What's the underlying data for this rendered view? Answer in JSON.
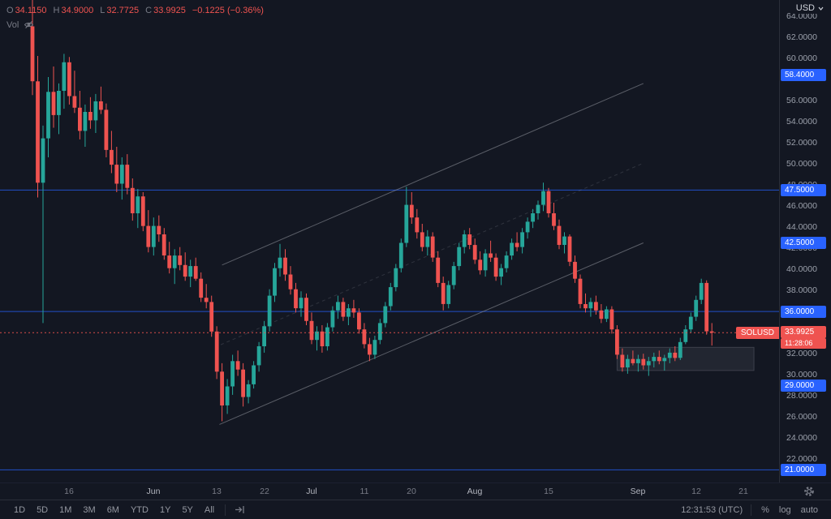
{
  "colors": {
    "bg": "#131722",
    "up": "#26a69a",
    "down": "#ef5350",
    "accent": "#2962ff",
    "trendline": "#9598a1",
    "text_dim": "#787b86",
    "text": "#b2b5be"
  },
  "icons": {
    "volume_visibility": "eye-off-icon",
    "go_to_date": "go-to-date-icon",
    "axis_settings": "gear-icon",
    "currency_dropdown": "chevron-down-icon"
  },
  "legend": {
    "open_label": "O",
    "open": "34.1150",
    "high_label": "H",
    "high": "34.9000",
    "low_label": "L",
    "low": "32.7725",
    "close_label": "C",
    "close": "33.9925",
    "change": "−0.1225 (−0.36%)",
    "volume_label": "Vol"
  },
  "currency_button": {
    "label": "USD"
  },
  "price_axis": {
    "normal_labels": [
      {
        "text": "64.0000",
        "price": 64
      },
      {
        "text": "62.0000",
        "price": 62
      },
      {
        "text": "60.0000",
        "price": 60
      },
      {
        "text": "56.0000",
        "price": 56
      },
      {
        "text": "54.0000",
        "price": 54
      },
      {
        "text": "52.0000",
        "price": 52
      },
      {
        "text": "50.0000",
        "price": 50
      },
      {
        "text": "48.0000",
        "price": 48
      },
      {
        "text": "46.0000",
        "price": 46
      },
      {
        "text": "44.0000",
        "price": 44
      },
      {
        "text": "42.0000",
        "price": 42
      },
      {
        "text": "40.0000",
        "price": 40
      },
      {
        "text": "38.0000",
        "price": 38
      },
      {
        "text": "32.0000",
        "price": 32
      },
      {
        "text": "30.0000",
        "price": 30
      },
      {
        "text": "28.0000",
        "price": 28
      },
      {
        "text": "26.0000",
        "price": 26
      },
      {
        "text": "24.0000",
        "price": 24
      },
      {
        "text": "22.0000",
        "price": 22
      }
    ],
    "level_labels": [
      {
        "text": "58.4000",
        "price": 58.4
      },
      {
        "text": "47.5000",
        "price": 47.5
      },
      {
        "text": "42.5000",
        "price": 42.5
      },
      {
        "text": "36.0000",
        "price": 36.0
      },
      {
        "text": "29.0000",
        "price": 29.0
      },
      {
        "text": "21.0000",
        "price": 21.0
      }
    ],
    "current": {
      "symbol_tag": "SOLUSD",
      "price_text": "33.9925",
      "price": 33.9925,
      "countdown": "11:28:06"
    }
  },
  "time_axis": {
    "ticks": [
      {
        "label": "16",
        "i": 7,
        "major": false
      },
      {
        "label": "Jun",
        "i": 23,
        "major": true
      },
      {
        "label": "13",
        "i": 35,
        "major": false
      },
      {
        "label": "22",
        "i": 44,
        "major": false
      },
      {
        "label": "Jul",
        "i": 53,
        "major": true
      },
      {
        "label": "11",
        "i": 63,
        "major": false
      },
      {
        "label": "20",
        "i": 72,
        "major": false
      },
      {
        "label": "Aug",
        "i": 84,
        "major": true
      },
      {
        "label": "15",
        "i": 98,
        "major": false
      },
      {
        "label": "Sep",
        "i": 115,
        "major": true
      },
      {
        "label": "12",
        "i": 126,
        "major": false
      },
      {
        "label": "21",
        "i": 135,
        "major": false
      }
    ]
  },
  "toolbar": {
    "ranges": [
      "1D",
      "5D",
      "1M",
      "3M",
      "6M",
      "YTD",
      "1Y",
      "5Y",
      "All"
    ],
    "clock": "12:31:53 (UTC)",
    "percent_label": "%",
    "log_label": "log",
    "auto_label": "auto"
  },
  "chart_data": {
    "type": "candlestick",
    "symbol": "SOLUSD",
    "quote_currency": "USD",
    "ylim": [
      19.8,
      65.5
    ],
    "last_price": 33.9925,
    "candles": [
      [
        63.0,
        66.2,
        56.5,
        57.8
      ],
      [
        57.8,
        60.2,
        46.8,
        48.2
      ],
      [
        48.2,
        53.6,
        34.9,
        52.4
      ],
      [
        52.4,
        58.2,
        50.6,
        56.8
      ],
      [
        56.8,
        59.2,
        53.4,
        54.6
      ],
      [
        54.6,
        57.6,
        52.8,
        56.9
      ],
      [
        56.9,
        60.4,
        55.2,
        59.6
      ],
      [
        59.6,
        60.1,
        55.6,
        56.4
      ],
      [
        56.4,
        58.8,
        54.8,
        55.3
      ],
      [
        55.3,
        56.9,
        52.3,
        53.1
      ],
      [
        53.1,
        55.6,
        51.6,
        54.9
      ],
      [
        54.9,
        56.3,
        53.3,
        54.1
      ],
      [
        54.1,
        56.6,
        52.9,
        55.9
      ],
      [
        55.9,
        57.3,
        54.7,
        55.1
      ],
      [
        55.1,
        55.7,
        50.6,
        51.3
      ],
      [
        51.3,
        53.1,
        49.1,
        49.9
      ],
      [
        49.9,
        51.6,
        47.3,
        48.1
      ],
      [
        48.1,
        50.6,
        46.6,
        49.9
      ],
      [
        49.9,
        50.9,
        47.1,
        47.7
      ],
      [
        47.7,
        48.6,
        44.6,
        45.3
      ],
      [
        45.3,
        47.6,
        43.9,
        46.9
      ],
      [
        46.9,
        47.3,
        43.6,
        44.1
      ],
      [
        44.1,
        45.6,
        41.6,
        42.1
      ],
      [
        42.1,
        44.9,
        41.3,
        44.1
      ],
      [
        44.1,
        45.1,
        42.6,
        43.3
      ],
      [
        43.3,
        43.9,
        40.9,
        41.3
      ],
      [
        41.3,
        42.6,
        39.6,
        40.1
      ],
      [
        40.1,
        41.9,
        38.6,
        41.3
      ],
      [
        41.3,
        42.1,
        39.9,
        40.4
      ],
      [
        40.4,
        41.6,
        38.9,
        39.3
      ],
      [
        39.3,
        40.9,
        38.3,
        40.3
      ],
      [
        40.3,
        41.1,
        38.9,
        39.1
      ],
      [
        39.1,
        39.7,
        36.9,
        37.3
      ],
      [
        37.3,
        38.6,
        36.3,
        36.9
      ],
      [
        36.9,
        37.5,
        33.6,
        34.1
      ],
      [
        34.1,
        34.6,
        29.6,
        30.3
      ],
      [
        30.3,
        31.1,
        25.6,
        27.1
      ],
      [
        27.1,
        29.6,
        26.3,
        28.9
      ],
      [
        28.9,
        31.9,
        28.1,
        31.3
      ],
      [
        31.3,
        32.3,
        29.9,
        30.5
      ],
      [
        30.5,
        31.1,
        27.0,
        27.9
      ],
      [
        27.9,
        29.5,
        27.3,
        29.1
      ],
      [
        29.1,
        31.3,
        28.7,
        30.9
      ],
      [
        30.9,
        33.1,
        30.3,
        32.7
      ],
      [
        32.7,
        35.1,
        32.1,
        34.6
      ],
      [
        34.6,
        38.1,
        34.1,
        37.5
      ],
      [
        37.5,
        40.6,
        36.9,
        40.1
      ],
      [
        40.1,
        42.4,
        39.3,
        41.1
      ],
      [
        41.1,
        41.9,
        38.9,
        39.5
      ],
      [
        39.5,
        40.3,
        37.6,
        38.1
      ],
      [
        38.1,
        38.7,
        35.9,
        36.3
      ],
      [
        36.3,
        37.9,
        35.5,
        37.3
      ],
      [
        37.3,
        37.7,
        34.7,
        35.1
      ],
      [
        35.1,
        35.9,
        32.9,
        33.3
      ],
      [
        33.3,
        34.6,
        32.3,
        34.1
      ],
      [
        34.1,
        34.7,
        32.1,
        32.7
      ],
      [
        32.7,
        34.9,
        32.3,
        34.5
      ],
      [
        34.5,
        36.5,
        34.1,
        36.1
      ],
      [
        36.1,
        37.5,
        35.3,
        36.9
      ],
      [
        36.9,
        37.3,
        35.1,
        35.5
      ],
      [
        35.5,
        36.7,
        34.7,
        36.3
      ],
      [
        36.3,
        37.1,
        35.4,
        35.9
      ],
      [
        35.9,
        36.3,
        33.9,
        34.3
      ],
      [
        34.3,
        34.9,
        32.5,
        32.9
      ],
      [
        32.9,
        33.5,
        31.3,
        31.9
      ],
      [
        31.9,
        33.7,
        31.5,
        33.3
      ],
      [
        33.3,
        35.3,
        32.9,
        34.9
      ],
      [
        34.9,
        36.9,
        34.5,
        36.5
      ],
      [
        36.5,
        38.7,
        36.1,
        38.3
      ],
      [
        38.3,
        40.5,
        37.9,
        40.1
      ],
      [
        40.1,
        42.9,
        39.7,
        42.5
      ],
      [
        42.5,
        47.8,
        42.1,
        46.1
      ],
      [
        46.1,
        47.3,
        44.3,
        44.9
      ],
      [
        44.9,
        45.7,
        42.9,
        43.5
      ],
      [
        43.5,
        44.3,
        41.7,
        42.1
      ],
      [
        42.1,
        43.7,
        41.3,
        43.1
      ],
      [
        43.1,
        43.5,
        40.7,
        41.1
      ],
      [
        41.1,
        41.7,
        38.3,
        38.7
      ],
      [
        38.7,
        39.3,
        36.1,
        36.7
      ],
      [
        36.7,
        38.9,
        36.3,
        38.5
      ],
      [
        38.5,
        40.7,
        38.1,
        40.3
      ],
      [
        40.3,
        42.5,
        39.9,
        42.1
      ],
      [
        42.1,
        43.7,
        41.5,
        43.3
      ],
      [
        43.3,
        43.9,
        41.9,
        42.3
      ],
      [
        42.3,
        42.9,
        40.5,
        40.9
      ],
      [
        40.9,
        41.7,
        39.5,
        39.9
      ],
      [
        39.9,
        41.9,
        39.3,
        41.5
      ],
      [
        41.5,
        42.7,
        40.7,
        41.1
      ],
      [
        41.1,
        41.5,
        38.9,
        39.3
      ],
      [
        39.3,
        40.5,
        38.5,
        40.1
      ],
      [
        40.1,
        41.7,
        39.7,
        41.3
      ],
      [
        41.3,
        42.9,
        40.9,
        42.5
      ],
      [
        42.5,
        43.5,
        41.7,
        42.1
      ],
      [
        42.1,
        43.9,
        41.5,
        43.5
      ],
      [
        43.5,
        44.9,
        42.9,
        44.5
      ],
      [
        44.5,
        45.7,
        43.9,
        45.3
      ],
      [
        45.3,
        46.5,
        44.7,
        46.1
      ],
      [
        46.1,
        48.2,
        45.5,
        47.4
      ],
      [
        47.4,
        47.7,
        44.9,
        45.3
      ],
      [
        45.3,
        46.3,
        43.7,
        44.1
      ],
      [
        44.1,
        44.7,
        41.9,
        42.3
      ],
      [
        42.3,
        43.5,
        41.5,
        43.1
      ],
      [
        43.1,
        43.3,
        40.3,
        40.7
      ],
      [
        40.7,
        41.3,
        38.7,
        39.1
      ],
      [
        39.1,
        39.5,
        36.3,
        36.7
      ],
      [
        36.7,
        37.7,
        35.9,
        36.3
      ],
      [
        36.3,
        37.3,
        35.5,
        36.9
      ],
      [
        36.9,
        37.5,
        35.7,
        36.1
      ],
      [
        36.1,
        36.7,
        34.9,
        35.3
      ],
      [
        35.3,
        36.5,
        35.0,
        36.2
      ],
      [
        36.2,
        36.5,
        33.9,
        34.3
      ],
      [
        34.3,
        34.7,
        31.5,
        31.9
      ],
      [
        31.9,
        32.5,
        30.3,
        30.7
      ],
      [
        30.7,
        31.9,
        30.1,
        31.5
      ],
      [
        31.5,
        32.3,
        30.9,
        31.1
      ],
      [
        31.1,
        31.9,
        30.3,
        31.5
      ],
      [
        31.5,
        32.0,
        30.5,
        30.9
      ],
      [
        30.9,
        31.7,
        29.9,
        31.3
      ],
      [
        31.3,
        32.1,
        30.7,
        31.7
      ],
      [
        31.7,
        32.3,
        31.0,
        31.3
      ],
      [
        31.3,
        31.9,
        30.4,
        31.6
      ],
      [
        31.6,
        32.5,
        31.1,
        32.1
      ],
      [
        32.1,
        32.7,
        31.3,
        31.6
      ],
      [
        31.6,
        33.5,
        31.4,
        33.1
      ],
      [
        33.1,
        34.7,
        32.9,
        34.3
      ],
      [
        34.3,
        35.9,
        34.0,
        35.5
      ],
      [
        35.5,
        37.5,
        35.1,
        37.1
      ],
      [
        37.1,
        39.1,
        36.7,
        38.7
      ],
      [
        38.7,
        38.95,
        33.8,
        34.115
      ],
      [
        34.115,
        34.9,
        32.7725,
        33.9925
      ]
    ],
    "drawings": {
      "levels": [
        {
          "price": 58.4,
          "line": false
        },
        {
          "price": 47.5,
          "line": true
        },
        {
          "price": 42.5,
          "line": false
        },
        {
          "price": 36.0,
          "line": true
        },
        {
          "price": 29.0,
          "line": false
        },
        {
          "price": 21.0,
          "line": true
        }
      ],
      "channel": {
        "upper": {
          "i1": 36,
          "p1": 40.4,
          "i2": 116,
          "p2": 57.6
        },
        "lower": {
          "i1": 35.5,
          "p1": 25.3,
          "i2": 116,
          "p2": 42.5
        },
        "median_dashed": true
      },
      "box": {
        "i1": 111,
        "i2": 137,
        "p_top": 32.6,
        "p_bottom": 30.4
      }
    }
  }
}
